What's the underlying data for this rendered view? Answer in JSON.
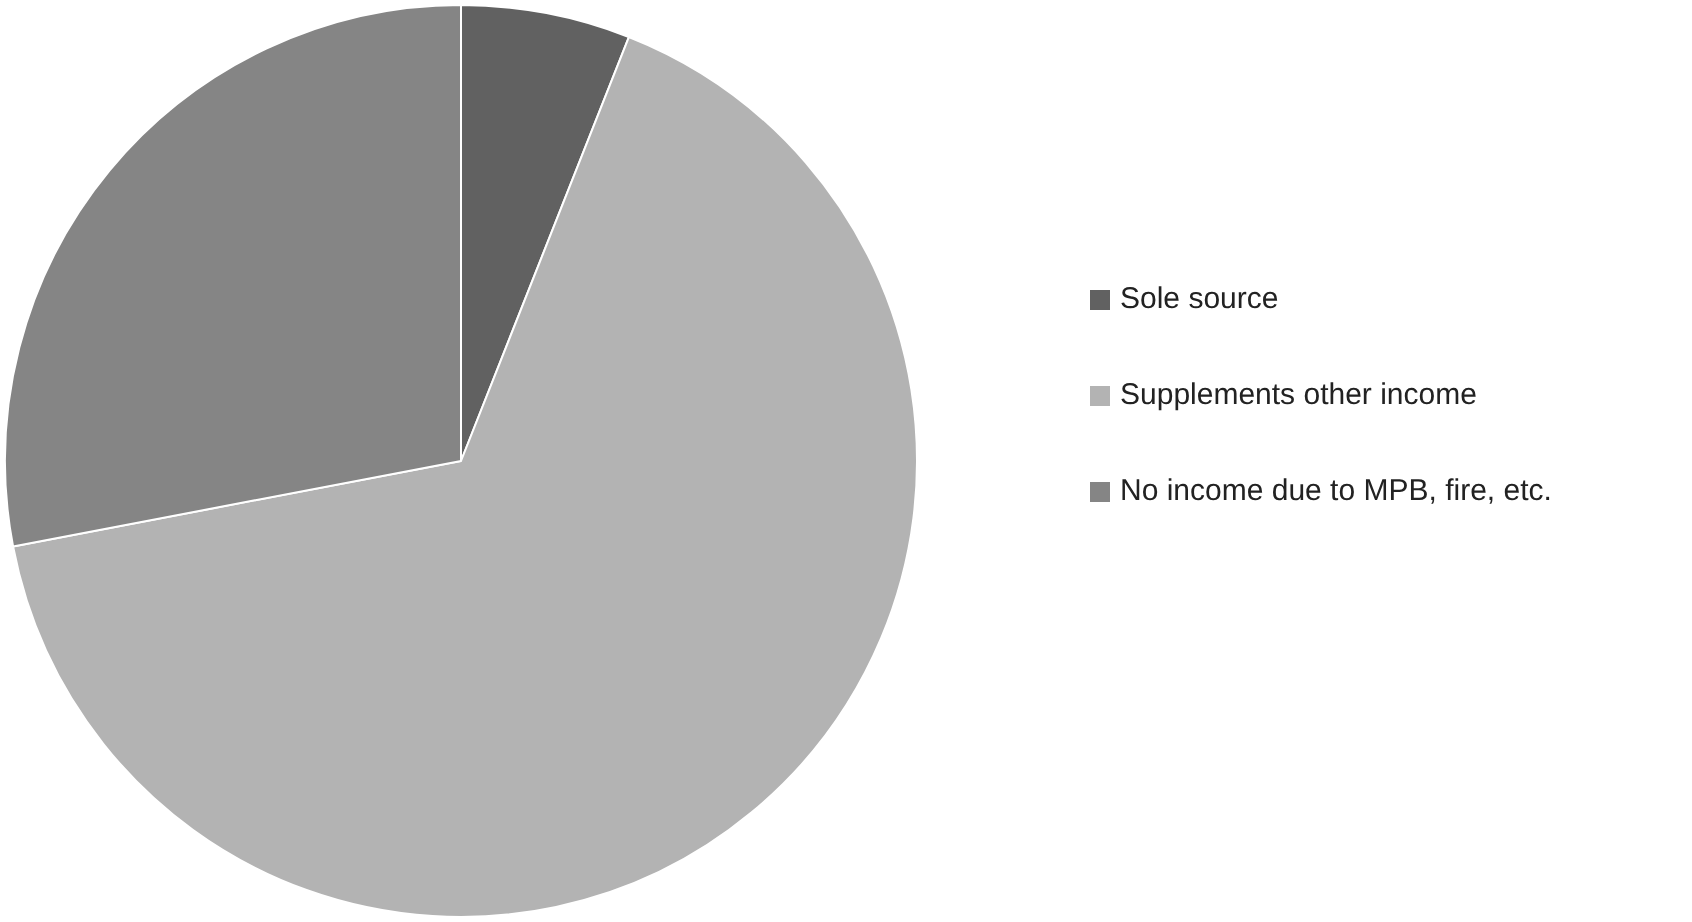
{
  "chart_data": {
    "type": "pie",
    "categories": [
      "Sole source",
      "Supplements other income",
      "No income due to MPB, fire, etc."
    ],
    "values": [
      6,
      66,
      28
    ],
    "colors": [
      "#616161",
      "#b3b3b3",
      "#858585"
    ],
    "legend": "right"
  }
}
